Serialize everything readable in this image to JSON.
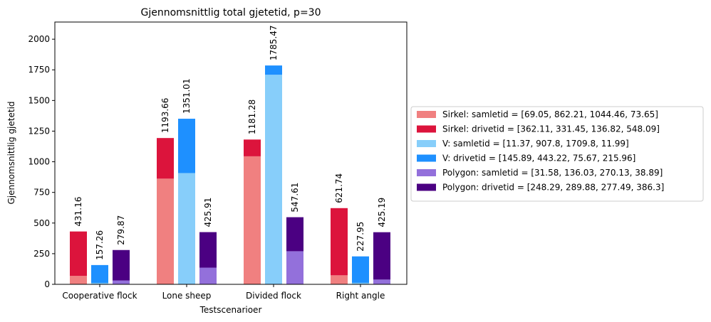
{
  "chart_data": {
    "type": "bar",
    "stacked": true,
    "title": "Gjennomsnittlig total gjetetid, p=30",
    "xlabel": "Testscenarioer",
    "ylabel": "Gjennomsnittlig gjetetid",
    "ylim": [
      0,
      2140
    ],
    "yticks": [
      0,
      250,
      500,
      750,
      1000,
      1250,
      1500,
      1750,
      2000
    ],
    "categories": [
      "Cooperative flock",
      "Lone sheep",
      "Divided flock",
      "Right angle"
    ],
    "grid": false,
    "legend_position": "outside-right",
    "groups": [
      {
        "name": "Sirkel",
        "totals": [
          431.16,
          1193.66,
          1181.28,
          621.74
        ],
        "total_labels": [
          "431.16",
          "1193.66",
          "1181.28",
          "621.74"
        ],
        "series": [
          {
            "name": "Sirkel: samletid = [69.05, 862.21, 1044.46, 73.65]",
            "color": "#f08080",
            "values": [
              69.05,
              862.21,
              1044.46,
              73.65
            ]
          },
          {
            "name": "Sirkel: drivetid = [362.11, 331.45, 136.82, 548.09]",
            "color": "#dc143c",
            "values": [
              362.11,
              331.45,
              136.82,
              548.09
            ]
          }
        ]
      },
      {
        "name": "V",
        "totals": [
          157.26,
          1351.01,
          1785.47,
          227.95
        ],
        "total_labels": [
          "157.26",
          "1351.01",
          "1785.47",
          "227.95"
        ],
        "series": [
          {
            "name": "V: samletid = [11.37, 907.8, 1709.8, 11.99]",
            "color": "#87cefa",
            "values": [
              11.37,
              907.8,
              1709.8,
              11.99
            ]
          },
          {
            "name": "V: drivetid = [145.89, 443.22, 75.67, 215.96]",
            "color": "#1e90ff",
            "values": [
              145.89,
              443.22,
              75.67,
              215.96
            ]
          }
        ]
      },
      {
        "name": "Polygon",
        "totals": [
          279.87,
          425.91,
          547.61,
          425.19
        ],
        "total_labels": [
          "279.87",
          "425.91",
          "547.61",
          "425.19"
        ],
        "series": [
          {
            "name": "Polygon: samletid = [31.58, 136.03, 270.13, 38.89]",
            "color": "#9370db",
            "values": [
              31.58,
              136.03,
              270.13,
              38.89
            ]
          },
          {
            "name": "Polygon: drivetid = [248.29, 289.88, 277.49, 386.3]",
            "color": "#4b0082",
            "values": [
              248.29,
              289.88,
              277.49,
              386.3
            ]
          }
        ]
      }
    ]
  }
}
